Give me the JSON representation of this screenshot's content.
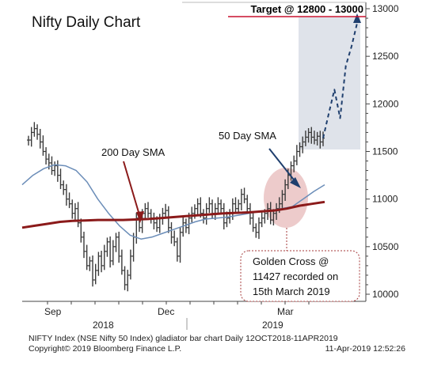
{
  "chart_data": {
    "type": "line",
    "title": "Nifty Daily Chart",
    "x_month_labels": [
      "Sep",
      "Dec",
      "Mar"
    ],
    "x_year_labels": [
      "2018",
      "2019"
    ],
    "ylim": [
      9950,
      13050
    ],
    "yticks": [
      10000,
      10500,
      11000,
      11500,
      12000,
      12500,
      13000
    ],
    "target_label": "Target @ 12800 - 13000",
    "target_zone": [
      11500,
      12950
    ],
    "annotations": {
      "sma200_label": "200 Day SMA",
      "sma50_label": "50 Day SMA",
      "golden_cross_lines": [
        "Golden Cross @",
        "11427 recorded on",
        "15th March 2019"
      ]
    },
    "series": [
      {
        "name": "NIFTY Index",
        "style": "bars",
        "color": "#3a3a3a",
        "values": [
          11620,
          11700,
          11740,
          11680,
          11600,
          11500,
          11420,
          11380,
          11300,
          11350,
          11250,
          11150,
          11100,
          11000,
          10950,
          10850,
          10900,
          10750,
          10600,
          10450,
          10300,
          10350,
          10150,
          10250,
          10400,
          10300,
          10450,
          10550,
          10350,
          10500,
          10600,
          10400,
          10250,
          10100,
          10200,
          10400,
          10600,
          10800,
          10700,
          10850,
          10900,
          10850,
          10800,
          10750,
          10700,
          10800,
          10850,
          10880,
          10700,
          10600,
          10550,
          10400,
          10650,
          10750,
          10700,
          10800,
          10850,
          10900,
          10950,
          10850,
          10800,
          10900,
          10950,
          10850,
          10900,
          10950,
          10900,
          10750,
          10800,
          10850,
          10950,
          10900,
          10950,
          11050,
          11000,
          10900,
          10800,
          10700,
          10650,
          10750,
          10800,
          10850,
          10900,
          10780,
          10850,
          10900,
          10950,
          11050,
          11150,
          11250,
          11350,
          11400,
          11500,
          11550,
          11600,
          11650,
          11700,
          11650,
          11620,
          11660,
          11600,
          11640
        ]
      },
      {
        "name": "50 Day SMA",
        "style": "line",
        "color": "#6b8db8",
        "values": [
          11150,
          11250,
          11320,
          11360,
          11350,
          11300,
          11180,
          11000,
          10850,
          10720,
          10620,
          10580,
          10600,
          10640,
          10680,
          10720,
          10760,
          10790,
          10800,
          10810,
          10830,
          10850,
          10870,
          10880,
          10900,
          10920,
          11000,
          11080,
          11150
        ]
      },
      {
        "name": "200 Day SMA",
        "style": "line",
        "color": "#8b1a1a",
        "values": [
          10700,
          10720,
          10740,
          10760,
          10770,
          10775,
          10780,
          10780,
          10780,
          10785,
          10790,
          10800,
          10810,
          10820,
          10830,
          10840,
          10850,
          10855,
          10860,
          10870,
          10880,
          10900,
          10930,
          10950,
          10970
        ]
      },
      {
        "name": "Projection",
        "style": "dashed",
        "color": "#1f3f6e",
        "values": [
          11640,
          11900,
          12150,
          11850,
          12400,
          12600,
          12850
        ]
      }
    ],
    "footer": {
      "line1_left": "NIFTY Index (NSE Nifty 50 Index) gladiator bar chart  Daily 12OCT2018-11APR2019",
      "line2_left": "Copyright© 2019 Bloomberg Finance L.P.",
      "line2_right": "11-Apr-2019 12:52:26"
    }
  }
}
